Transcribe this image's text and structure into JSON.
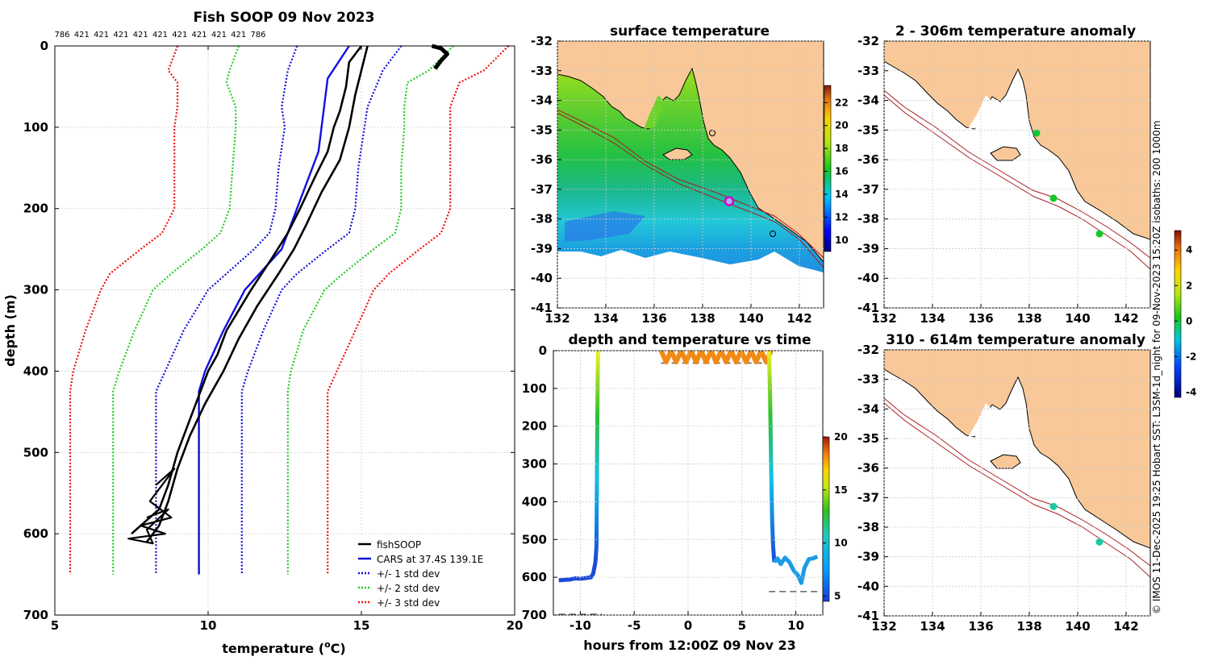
{
  "colors": {
    "profile": "#000000",
    "cars": "#1010dd",
    "std1": "#1010dd",
    "std2": "#22cc22",
    "std3": "#ee1111",
    "land": "#f9c898",
    "isobath": "#a81e1e"
  },
  "credit": "© IMOS 11-Dec-2025 19:25 Hobart SST: L3SM-1d_night for 09-Nov-2023 15:20Z isobaths: 200  1000m",
  "chart_data": [
    {
      "id": "profile",
      "type": "line",
      "title": "Fish SOOP 09 Nov 2023",
      "top_counts": [
        "786",
        "421",
        "421",
        "421",
        "421",
        "421",
        "421",
        "421",
        "421",
        "421",
        "786"
      ],
      "xlabel": "temperature (",
      "xlabel_sup": "o",
      "xlabel_unit": "C)",
      "ylabel": "depth (m)",
      "xlim": [
        5,
        20
      ],
      "ylim": [
        0,
        700
      ],
      "xticks": [
        "5",
        "10",
        "15",
        "20"
      ],
      "yticks": [
        "0",
        "100",
        "200",
        "300",
        "400",
        "500",
        "600",
        "700"
      ],
      "legend": {
        "position": "bottom-right",
        "labels": [
          "fishSOOP",
          "CARS at 37.4S 139.1E",
          "+/- 1 std dev",
          "+/- 2 std dev",
          "+/- 3 std dev"
        ]
      },
      "cars": {
        "depth": [
          0,
          40,
          70,
          130,
          200,
          250,
          300,
          350,
          400,
          425,
          650
        ],
        "temp": [
          14.6,
          13.9,
          13.8,
          13.6,
          12.9,
          12.4,
          11.2,
          10.5,
          9.9,
          9.7,
          9.7
        ]
      },
      "std1": {
        "depth": [
          0,
          30,
          75,
          100,
          150,
          200,
          230,
          250,
          280,
          300,
          350,
          400,
          425,
          650
        ],
        "left": [
          12.9,
          12.6,
          12.4,
          12.5,
          12.3,
          12.2,
          12.0,
          11.5,
          10.6,
          10.0,
          9.2,
          8.6,
          8.3,
          8.3
        ],
        "right": [
          16.3,
          15.7,
          15.2,
          15.1,
          14.9,
          14.8,
          14.6,
          13.9,
          12.9,
          12.4,
          11.8,
          11.3,
          11.1,
          11.1
        ]
      },
      "std2": {
        "depth": [
          0,
          30,
          45,
          75,
          100,
          150,
          200,
          230,
          250,
          280,
          300,
          350,
          400,
          425,
          650
        ],
        "left": [
          11.0,
          10.7,
          10.6,
          10.9,
          10.9,
          10.8,
          10.7,
          10.4,
          9.8,
          8.8,
          8.2,
          7.6,
          7.1,
          6.9,
          6.9
        ],
        "right": [
          18.0,
          17.2,
          16.5,
          16.4,
          16.4,
          16.3,
          16.3,
          16.1,
          15.4,
          14.4,
          13.8,
          13.1,
          12.7,
          12.6,
          12.6
        ]
      },
      "std3": {
        "depth": [
          0,
          30,
          45,
          75,
          100,
          150,
          200,
          230,
          250,
          280,
          300,
          350,
          400,
          425,
          650
        ],
        "left": [
          9.0,
          8.7,
          9.0,
          9.0,
          8.9,
          8.9,
          8.9,
          8.5,
          7.8,
          6.8,
          6.5,
          6.0,
          5.6,
          5.5,
          5.5
        ],
        "right": [
          19.8,
          19.0,
          18.2,
          17.9,
          17.9,
          17.9,
          17.9,
          17.6,
          16.9,
          15.9,
          15.4,
          14.8,
          14.2,
          13.9,
          13.9
        ]
      },
      "profile_up": {
        "depth": [
          0,
          20,
          50,
          80,
          100,
          130,
          160,
          200,
          230,
          260,
          300,
          350,
          380,
          400,
          430,
          460,
          500,
          540,
          570,
          600
        ],
        "temp": [
          15.0,
          14.6,
          14.5,
          14.3,
          14.1,
          13.9,
          13.5,
          13.0,
          12.6,
          12.1,
          11.4,
          10.6,
          10.3,
          10.0,
          9.7,
          9.4,
          9.0,
          8.7,
          8.4,
          7.5
        ]
      },
      "profile_down": {
        "depth": [
          0,
          30,
          60,
          100,
          140,
          180,
          220,
          250,
          280,
          320,
          360,
          400,
          440,
          480,
          520,
          560,
          590,
          610
        ],
        "temp": [
          15.2,
          15.0,
          14.8,
          14.6,
          14.3,
          13.7,
          13.2,
          12.8,
          12.3,
          11.6,
          11.0,
          10.5,
          9.9,
          9.4,
          9.0,
          8.7,
          8.4,
          8.0
        ]
      },
      "surface_blob": {
        "depth": [
          0,
          3,
          10,
          18,
          28
        ],
        "temp": [
          17.3,
          17.6,
          17.8,
          17.6,
          17.4
        ]
      }
    },
    {
      "id": "sst_map",
      "type": "heatmap",
      "title": "surface temperature",
      "xlim": [
        132,
        143
      ],
      "ylim": [
        -41,
        -32
      ],
      "xticks": [
        "132",
        "134",
        "136",
        "138",
        "140",
        "142"
      ],
      "yticks": [
        "-32",
        "-33",
        "-34",
        "-35",
        "-36",
        "-37",
        "-38",
        "-39",
        "-40",
        "-41"
      ],
      "colorbar": {
        "min": 9,
        "max": 23.5,
        "ticks": [
          "10",
          "12",
          "14",
          "16",
          "18",
          "20",
          "22"
        ]
      },
      "markers": [
        {
          "lon": 138.4,
          "lat": -35.1,
          "kind": "open-circle"
        },
        {
          "lon": 139.1,
          "lat": -37.4,
          "kind": "magenta-circle"
        },
        {
          "lon": 140.9,
          "lat": -38.5,
          "kind": "open-circle"
        }
      ]
    },
    {
      "id": "depth_time",
      "type": "scatter",
      "title": "depth and temperature vs time",
      "xlabel": "hours from 12:00Z 09 Nov 23",
      "xlim": [
        -12.5,
        12.5
      ],
      "ylim": [
        0,
        700
      ],
      "xticks": [
        "-10",
        "-5",
        "0",
        "5",
        "10"
      ],
      "yticks": [
        "0",
        "100",
        "200",
        "300",
        "400",
        "500",
        "600",
        "700"
      ],
      "colorbar": {
        "min": 4.5,
        "max": 20,
        "ticks": [
          "5",
          "10",
          "15",
          "20"
        ]
      },
      "descent1": {
        "t": [
          -12,
          -11.5,
          -11,
          -10.5,
          -10,
          -9.5,
          -9.0,
          -8.8,
          -8.6,
          -8.5,
          -8.45,
          -8.4,
          -8.35
        ],
        "depth": [
          608,
          607,
          606,
          603,
          604,
          602,
          600,
          590,
          560,
          520,
          300,
          100,
          0
        ]
      },
      "ascent2": {
        "t": [
          7.5,
          7.6,
          7.7,
          7.8,
          7.9,
          8.0,
          8.3,
          8.6,
          9.0,
          9.4,
          9.8,
          10.2,
          10.5,
          10.8,
          11.2,
          11.6,
          12.0
        ],
        "depth": [
          0,
          100,
          300,
          450,
          520,
          560,
          550,
          565,
          548,
          560,
          582,
          595,
          615,
          575,
          552,
          550,
          545
        ]
      },
      "surface_cycles": {
        "t_start": -2.5,
        "t_end": 7.7,
        "count": 11,
        "depth_max": 30
      },
      "bottom_dashes": [
        {
          "t0": -12,
          "t1": -8,
          "depth": 700
        },
        {
          "t0": 7.5,
          "t1": 12,
          "depth": 640
        },
        {
          "t0": -2.5,
          "t1": 7.5,
          "depth": 35
        }
      ]
    },
    {
      "id": "anomaly_upper",
      "type": "scatter",
      "title": "2 - 306m temperature anomaly",
      "xlim": [
        132,
        143
      ],
      "ylim": [
        -41,
        -32
      ],
      "xticks": [
        "132",
        "134",
        "136",
        "138",
        "140",
        "142"
      ],
      "yticks": [
        "-32",
        "-33",
        "-34",
        "-35",
        "-36",
        "-37",
        "-38",
        "-39",
        "-40",
        "-41"
      ],
      "points": [
        {
          "lon": 138.3,
          "lat": -35.1,
          "anomaly": 0.2
        },
        {
          "lon": 139.0,
          "lat": -37.3,
          "anomaly": 0.3
        },
        {
          "lon": 140.9,
          "lat": -38.5,
          "anomaly": 0.3
        }
      ],
      "colorbar": {
        "min": -4.3,
        "max": 5.1,
        "ticks": [
          "4",
          "2",
          "0",
          "-2",
          "-4"
        ]
      }
    },
    {
      "id": "anomaly_lower",
      "type": "scatter",
      "title": "310 - 614m temperature anomaly",
      "xlim": [
        132,
        143
      ],
      "ylim": [
        -41,
        -32
      ],
      "xticks": [
        "132",
        "134",
        "136",
        "138",
        "140",
        "142"
      ],
      "yticks": [
        "-32",
        "-33",
        "-34",
        "-35",
        "-36",
        "-37",
        "-38",
        "-39",
        "-40",
        "-41"
      ],
      "points": [
        {
          "lon": 139.0,
          "lat": -37.3,
          "anomaly": -0.7
        },
        {
          "lon": 140.9,
          "lat": -38.5,
          "anomaly": -0.6
        }
      ]
    }
  ]
}
